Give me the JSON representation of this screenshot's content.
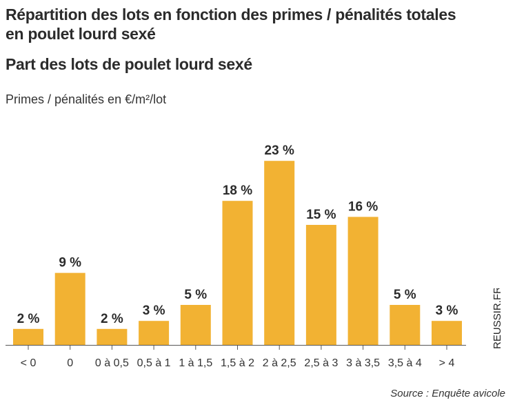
{
  "header": {
    "title_line1": "Répartition des lots en fonction des primes / pénalités totales",
    "title_line2": "en poulet lourd sexé",
    "subtitle": "Part des lots de poulet lourd sexé",
    "unit_label": "Primes / pénalités en €/m²/lot"
  },
  "watermark": "REUSSIR.FR",
  "source": "Source : Enquête avicole",
  "colors": {
    "bar": "#f2b233",
    "axis": "#555555",
    "text": "#2b2b2b"
  },
  "chart_data": {
    "type": "bar",
    "categories": [
      "< 0",
      "0",
      "0 à 0,5",
      "0,5 à 1",
      "1 à 1,5",
      "1,5 à 2",
      "2 à 2,5",
      "2,5 à 3",
      "3 à 3,5",
      "3,5 à 4",
      "> 4"
    ],
    "values": [
      2,
      9,
      2,
      3,
      5,
      18,
      23,
      15,
      16,
      5,
      3
    ],
    "value_labels": [
      "2 %",
      "9 %",
      "2 %",
      "3 %",
      "5 %",
      "18 %",
      "23 %",
      "15 %",
      "16 %",
      "5 %",
      "3 %"
    ],
    "title": "Part des lots de poulet lourd sexé",
    "xlabel": "",
    "ylabel": "",
    "ylim": [
      0,
      25
    ],
    "grid": false
  }
}
